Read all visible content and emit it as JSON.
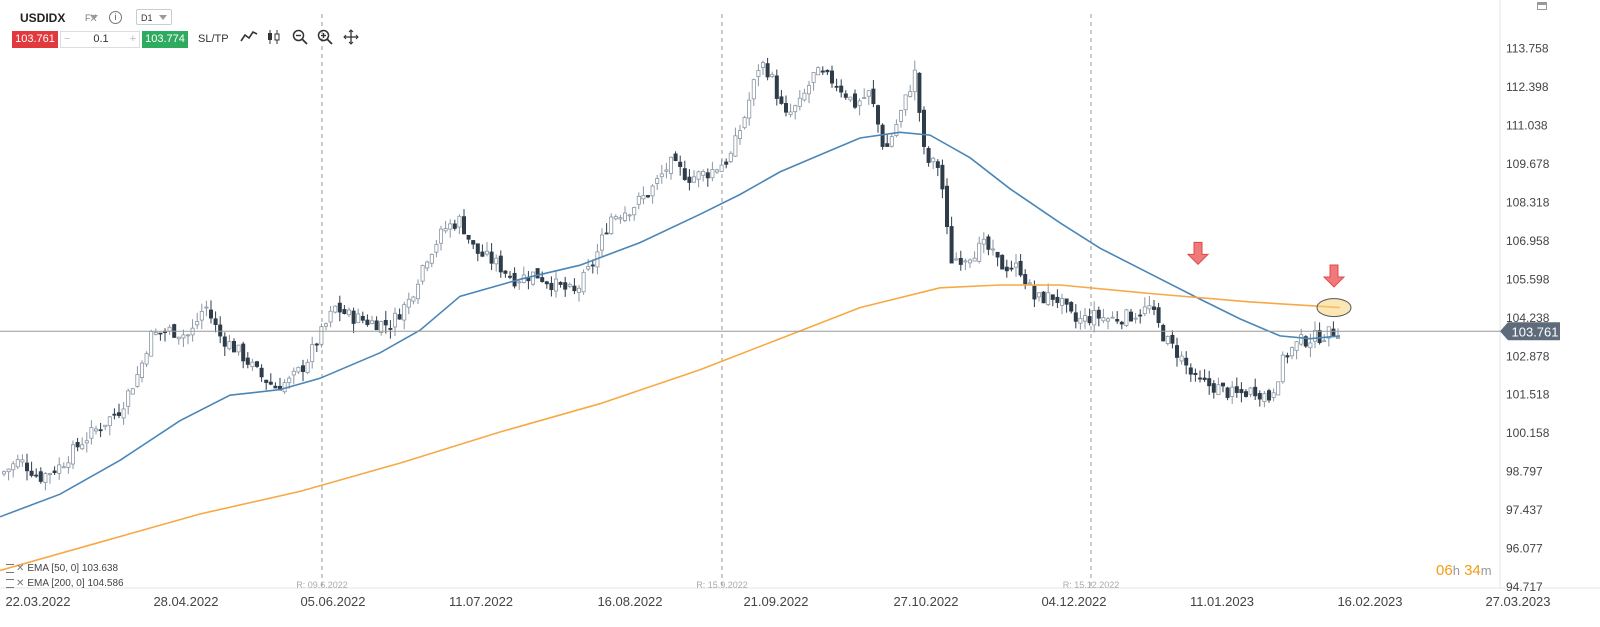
{
  "instrument": {
    "symbol": "USDIDX",
    "market": "FX",
    "timeframe": "D1",
    "info_icon": "info-icon"
  },
  "trade": {
    "sell_price": "103.761",
    "quantity": "0.1",
    "buy_price": "103.774",
    "sltp_label": "SL/TP",
    "minus_label": "−",
    "plus_label": "+"
  },
  "tools": [
    "line-chart-icon",
    "candle-chart-icon",
    "zoom-out-icon",
    "zoom-in-icon",
    "move-icon"
  ],
  "indicators": [
    {
      "label": "EMA [50, 0]",
      "value": "103.638",
      "color": "#4a86b8"
    },
    {
      "label": "EMA [200, 0]",
      "value": "104.586",
      "color": "#f7a945"
    }
  ],
  "timer": {
    "hours": "06",
    "h": "h",
    "minutes": "34",
    "m": "m"
  },
  "chart_data": {
    "type": "candlestick",
    "y_axis": {
      "ticks": [
        "113.758",
        "112.398",
        "111.038",
        "109.678",
        "108.318",
        "106.958",
        "105.598",
        "104.238",
        "102.878",
        "101.518",
        "100.158",
        "98.797",
        "97.437",
        "96.077",
        "94.717"
      ]
    },
    "x_axis": {
      "ticks": [
        "22.03.2022",
        "28.04.2022",
        "05.06.2022",
        "11.07.2022",
        "16.08.2022",
        "21.09.2022",
        "27.10.2022",
        "04.12.2022",
        "11.01.2023",
        "16.02.2023",
        "27.03.2023"
      ]
    },
    "ylim": [
      94.717,
      115.0
    ],
    "current_price": "103.761",
    "session_labels": [
      "R: 09.6.2022",
      "R: 15.9.2022",
      "R: 15.12.2022"
    ],
    "close_path": [
      [
        0,
        98.7
      ],
      [
        20,
        99.2
      ],
      [
        40,
        98.6
      ],
      [
        60,
        99.0
      ],
      [
        80,
        99.8
      ],
      [
        100,
        100.4
      ],
      [
        120,
        101.0
      ],
      [
        140,
        102.4
      ],
      [
        150,
        103.6
      ],
      [
        170,
        103.8
      ],
      [
        190,
        103.6
      ],
      [
        205,
        104.7
      ],
      [
        220,
        103.6
      ],
      [
        240,
        103.0
      ],
      [
        260,
        102.2
      ],
      [
        275,
        101.8
      ],
      [
        290,
        102.0
      ],
      [
        305,
        102.6
      ],
      [
        320,
        103.6
      ],
      [
        335,
        104.6
      ],
      [
        350,
        104.3
      ],
      [
        370,
        104.1
      ],
      [
        390,
        104.0
      ],
      [
        410,
        104.9
      ],
      [
        425,
        106.3
      ],
      [
        445,
        107.4
      ],
      [
        460,
        107.7
      ],
      [
        475,
        106.6
      ],
      [
        495,
        106.2
      ],
      [
        515,
        105.6
      ],
      [
        535,
        105.8
      ],
      [
        555,
        105.4
      ],
      [
        575,
        105.1
      ],
      [
        595,
        106.3
      ],
      [
        610,
        107.8
      ],
      [
        630,
        108.1
      ],
      [
        650,
        108.7
      ],
      [
        670,
        109.7
      ],
      [
        690,
        109.2
      ],
      [
        710,
        109.4
      ],
      [
        730,
        109.9
      ],
      [
        745,
        111.4
      ],
      [
        760,
        113.3
      ],
      [
        770,
        112.9
      ],
      [
        785,
        111.3
      ],
      [
        800,
        111.8
      ],
      [
        815,
        112.9
      ],
      [
        835,
        112.6
      ],
      [
        855,
        111.8
      ],
      [
        870,
        112.2
      ],
      [
        885,
        110.1
      ],
      [
        900,
        111.4
      ],
      [
        915,
        112.9
      ],
      [
        925,
        109.8
      ],
      [
        940,
        109.6
      ],
      [
        950,
        106.3
      ],
      [
        965,
        106.4
      ],
      [
        985,
        106.8
      ],
      [
        1000,
        106.1
      ],
      [
        1020,
        106.0
      ],
      [
        1035,
        104.9
      ],
      [
        1055,
        105.0
      ],
      [
        1075,
        104.1
      ],
      [
        1095,
        104.3
      ],
      [
        1110,
        104.2
      ],
      [
        1130,
        104.3
      ],
      [
        1150,
        104.6
      ],
      [
        1165,
        103.5
      ],
      [
        1180,
        102.9
      ],
      [
        1195,
        102.0
      ],
      [
        1215,
        101.8
      ],
      [
        1235,
        101.5
      ],
      [
        1255,
        101.7
      ],
      [
        1270,
        101.4
      ],
      [
        1285,
        102.9
      ],
      [
        1300,
        103.4
      ],
      [
        1320,
        103.6
      ],
      [
        1340,
        103.8
      ]
    ],
    "ema50": [
      [
        0,
        97.2
      ],
      [
        60,
        98.0
      ],
      [
        120,
        99.2
      ],
      [
        180,
        100.6
      ],
      [
        230,
        101.5
      ],
      [
        280,
        101.7
      ],
      [
        320,
        102.1
      ],
      [
        380,
        103.0
      ],
      [
        420,
        103.8
      ],
      [
        460,
        105.0
      ],
      [
        520,
        105.6
      ],
      [
        580,
        106.1
      ],
      [
        640,
        106.9
      ],
      [
        700,
        107.9
      ],
      [
        740,
        108.6
      ],
      [
        780,
        109.4
      ],
      [
        820,
        110.0
      ],
      [
        860,
        110.6
      ],
      [
        900,
        110.8
      ],
      [
        930,
        110.7
      ],
      [
        970,
        109.9
      ],
      [
        1010,
        108.8
      ],
      [
        1060,
        107.6
      ],
      [
        1100,
        106.7
      ],
      [
        1150,
        105.8
      ],
      [
        1200,
        104.9
      ],
      [
        1240,
        104.2
      ],
      [
        1280,
        103.6
      ],
      [
        1310,
        103.5
      ],
      [
        1340,
        103.6
      ]
    ],
    "ema200": [
      [
        0,
        95.3
      ],
      [
        100,
        96.3
      ],
      [
        200,
        97.3
      ],
      [
        300,
        98.1
      ],
      [
        400,
        99.1
      ],
      [
        500,
        100.2
      ],
      [
        600,
        101.2
      ],
      [
        700,
        102.4
      ],
      [
        780,
        103.5
      ],
      [
        860,
        104.6
      ],
      [
        940,
        105.3
      ],
      [
        1000,
        105.4
      ],
      [
        1060,
        105.4
      ],
      [
        1150,
        105.1
      ],
      [
        1250,
        104.8
      ],
      [
        1340,
        104.6
      ]
    ],
    "arrows": [
      {
        "x": 1198,
        "y": 106.2
      },
      {
        "x": 1334,
        "y": 105.4
      }
    ],
    "highlight": {
      "x": 1334,
      "y": 104.6
    }
  }
}
